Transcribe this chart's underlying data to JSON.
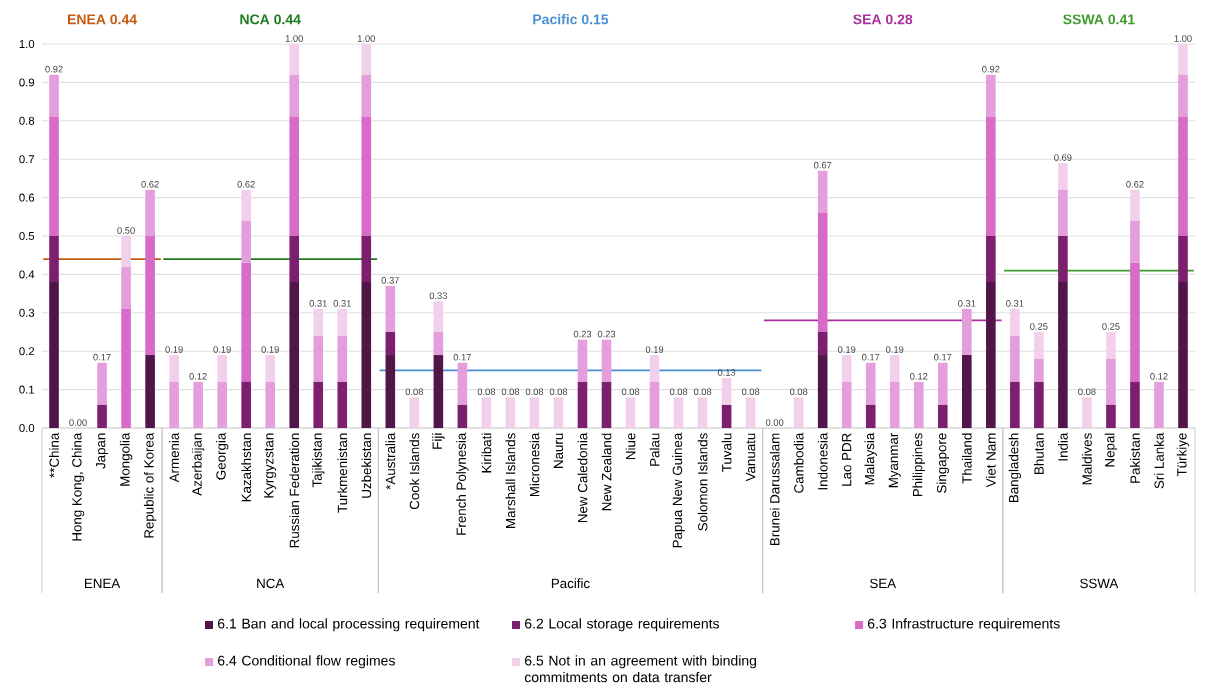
{
  "chart_data": {
    "type": "bar",
    "stacked": true,
    "grid": "y",
    "legend": "bottom",
    "categories": [
      "**China",
      "Hong Kong, China",
      "Japan",
      "Mongolia",
      "Republic of Korea",
      "Armenia",
      "Azerbaijan",
      "Georgia",
      "Kazakhstan",
      "Kyrgyzstan",
      "Russian Federation",
      "Tajikistan",
      "Turkmenistan",
      "Uzbekistan",
      "*Australia",
      "Cook Islands",
      "Fiji",
      "French Polynesia",
      "Kiribati",
      "Marshall Islands",
      "Micronesia",
      "Nauru",
      "New Caledonia",
      "New Zealand",
      "Niue",
      "Palau",
      "Papua New Guinea",
      "Solomon Islands",
      "Tuvalu",
      "Vanuatu",
      "Brunei Darussalam",
      "Cambodia",
      "Indonesia",
      "Lao PDR",
      "Malaysia",
      "Myanmar",
      "Philippines",
      "Singapore",
      "Thailand",
      "Viet Nam",
      "Bangladesh",
      "Bhutan",
      "India",
      "Maldives",
      "Nepal",
      "Pakistan",
      "Sri Lanka",
      "Türkiye"
    ],
    "series": [
      {
        "name": "6.1 Ban and local processing requirement",
        "color": "#521548",
        "values": [
          0.38,
          0,
          0,
          0,
          0.19,
          0,
          0,
          0,
          0,
          0,
          0.38,
          0,
          0,
          0.38,
          0.19,
          0,
          0.19,
          0,
          0,
          0,
          0,
          0,
          0,
          0,
          0,
          0,
          0,
          0,
          0,
          0,
          0,
          0,
          0.19,
          0,
          0,
          0,
          0,
          0,
          0.19,
          0.38,
          0,
          0,
          0.38,
          0,
          0,
          0,
          0,
          0.38
        ]
      },
      {
        "name": "6.2 Local storage requirements",
        "color": "#7b1f6e",
        "values": [
          0.12,
          0,
          0.06,
          0,
          0,
          0,
          0,
          0,
          0.12,
          0,
          0.12,
          0.12,
          0.12,
          0.12,
          0.06,
          0,
          0,
          0.06,
          0,
          0,
          0,
          0,
          0.12,
          0.12,
          0,
          0,
          0,
          0,
          0.06,
          0,
          0,
          0,
          0.06,
          0,
          0.06,
          0,
          0,
          0.06,
          0,
          0.12,
          0.12,
          0.12,
          0.12,
          0,
          0.06,
          0.12,
          0,
          0.12
        ]
      },
      {
        "name": "6.3 Infrastructure requirements",
        "color": "#d86bc8",
        "values": [
          0.31,
          0,
          0,
          0.31,
          0.31,
          0,
          0,
          0,
          0.31,
          0,
          0.31,
          0,
          0,
          0.31,
          0,
          0,
          0,
          0,
          0,
          0,
          0,
          0,
          0,
          0,
          0,
          0,
          0,
          0,
          0,
          0,
          0,
          0,
          0.31,
          0,
          0,
          0,
          0,
          0,
          0,
          0.31,
          0,
          0,
          0,
          0,
          0,
          0.31,
          0,
          0.31
        ]
      },
      {
        "name": "6.4 Conditional flow regimes",
        "color": "#e49edb",
        "values": [
          0.11,
          0,
          0.11,
          0.11,
          0.12,
          0.12,
          0.12,
          0.12,
          0.11,
          0.12,
          0.11,
          0.12,
          0.12,
          0.11,
          0.12,
          0,
          0.06,
          0.11,
          0,
          0,
          0,
          0,
          0.11,
          0.11,
          0,
          0.12,
          0,
          0,
          0,
          0,
          0,
          0,
          0.11,
          0.12,
          0.11,
          0.12,
          0.12,
          0.11,
          0.12,
          0.11,
          0.12,
          0.06,
          0.12,
          0,
          0.12,
          0.11,
          0.12,
          0.11
        ]
      },
      {
        "name": "6.5 Not in an agreement with binding commitments on data transfer",
        "color": "#f2cfeb",
        "values": [
          0,
          0,
          0,
          0.08,
          0,
          0.07,
          0,
          0.07,
          0.08,
          0.07,
          0.08,
          0.07,
          0.07,
          0.08,
          0,
          0.08,
          0.08,
          0,
          0.08,
          0.08,
          0.08,
          0.08,
          0,
          0,
          0.08,
          0.07,
          0.08,
          0.08,
          0.07,
          0.08,
          0,
          0.08,
          0,
          0.07,
          0,
          0.07,
          0,
          0,
          0,
          0,
          0.07,
          0.07,
          0.07,
          0.08,
          0.07,
          0.08,
          0,
          0.08
        ]
      }
    ],
    "totals": [
      "0.92",
      "0.00",
      "0.17",
      "0.50",
      "0.62",
      "0.19",
      "0.12",
      "0.19",
      "0.62",
      "0.19",
      "1.00",
      "0.31",
      "0.31",
      "1.00",
      "0.37",
      "0.08",
      "0.33",
      "0.17",
      "0.08",
      "0.08",
      "0.08",
      "0.08",
      "0.23",
      "0.23",
      "0.08",
      "0.19",
      "0.08",
      "0.08",
      "0.13",
      "0.08",
      "0.00",
      "0.08",
      "0.67",
      "0.19",
      "0.17",
      "0.19",
      "0.12",
      "0.17",
      "0.31",
      "0.92",
      "0.31",
      "0.25",
      "0.69",
      "0.08",
      "0.25",
      "0.62",
      "0.12",
      "1.00"
    ],
    "ylim": [
      0,
      1
    ],
    "yticks": [
      {
        "value": 0,
        "label": "0.0"
      },
      {
        "value": 0.1,
        "label": "0.1"
      },
      {
        "value": 0.2,
        "label": "0.2"
      },
      {
        "value": 0.3,
        "label": "0.3"
      },
      {
        "value": 0.4,
        "label": "0.4"
      },
      {
        "value": 0.5,
        "label": "0.5"
      },
      {
        "value": 0.6,
        "label": "0.6"
      },
      {
        "value": 0.7,
        "label": "0.7"
      },
      {
        "value": 0.8,
        "label": "0.8"
      },
      {
        "value": 0.9,
        "label": "0.9"
      },
      {
        "value": 1,
        "label": "1.0"
      }
    ],
    "ref_lines": [
      {
        "axis": "y",
        "value": 0.44,
        "label": "ENEA 0.44",
        "color": "#c55a11"
      },
      {
        "axis": "y",
        "value": 0.44,
        "label": "NCA 0.44",
        "color": "#1e7b1e"
      },
      {
        "axis": "y",
        "value": 0.15,
        "label": "Pacific 0.15",
        "color": "#4a8fd6"
      },
      {
        "axis": "y",
        "value": 0.28,
        "label": "SEA 0.28",
        "color": "#a8309e"
      },
      {
        "axis": "y",
        "value": 0.41,
        "label": "SSWA 0.41",
        "color": "#3e9b2e"
      }
    ],
    "annotations": [
      "ENEA",
      "NCA",
      "Pacific",
      "SEA",
      "SSWA"
    ]
  }
}
